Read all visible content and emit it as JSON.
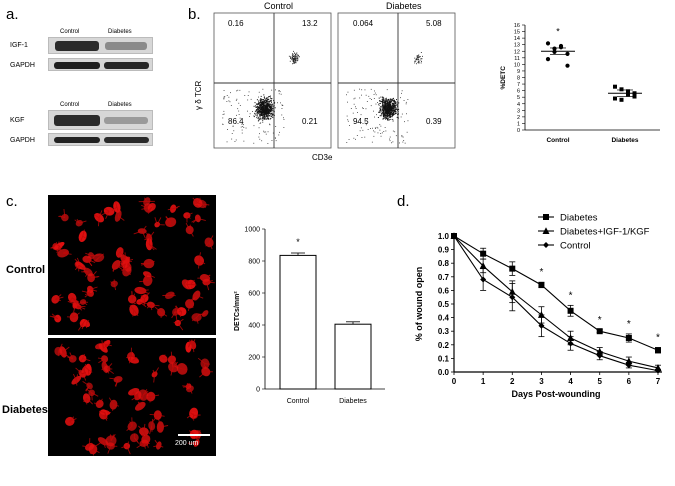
{
  "panels": {
    "a": {
      "letter": "a.",
      "blots": [
        {
          "columns": [
            "Control",
            "Diabetes"
          ],
          "rows": [
            "IGF-1",
            "GAPDH"
          ]
        },
        {
          "columns": [
            "Control",
            "Diabetes"
          ],
          "rows": [
            "KGF",
            "GAPDH"
          ]
        }
      ]
    },
    "b": {
      "letter": "b.",
      "flow": {
        "x_label": "CD3e",
        "y_label": "γ δ TCR",
        "plots": [
          {
            "title": "Control",
            "quadrants": {
              "ul": "0.16",
              "ur": "13.2",
              "ll": "86.4",
              "lr": "0.21"
            }
          },
          {
            "title": "Diabetes",
            "quadrants": {
              "ul": "0.064",
              "ur": "5.08",
              "ll": "94.5",
              "lr": "0.39"
            }
          }
        ]
      },
      "scatter_ylabel": "%DETC",
      "scatter_categories": [
        "Control",
        "Diabetes"
      ],
      "star": "*"
    },
    "c": {
      "letter": "c.",
      "row_labels": [
        "Control",
        "Diabetes"
      ],
      "scale_bar": "200 um",
      "bar_ylabel": "DETCs/mm²",
      "star": "*"
    },
    "d": {
      "letter": "d.",
      "xlabel": "Days Post-wounding",
      "ylabel": "% of wound open",
      "legend": [
        "Diabetes",
        "Diabetes+IGF-1/KGF",
        "Control"
      ],
      "star": "*"
    }
  },
  "chart_data": [
    {
      "type": "scatter",
      "panel": "b",
      "ylabel": "%DETC",
      "categories": [
        "Control",
        "Diabetes"
      ],
      "ylim": [
        0,
        16
      ],
      "yticks": [
        0,
        1,
        2,
        3,
        4,
        5,
        6,
        7,
        8,
        9,
        10,
        11,
        12,
        13,
        14,
        15,
        16
      ],
      "series": [
        {
          "name": "Control",
          "marker": "circle",
          "values": [
            13.2,
            12.4,
            12.8,
            11.6,
            10.8,
            11.9,
            12.6,
            9.8
          ],
          "mean": 12.0
        },
        {
          "name": "Diabetes",
          "marker": "square",
          "values": [
            6.6,
            6.2,
            5.4,
            5.6,
            4.8,
            4.6,
            5.9,
            5.1
          ],
          "mean": 5.6
        }
      ],
      "annotations": [
        {
          "category": "Control",
          "text": "*"
        }
      ]
    },
    {
      "type": "bar",
      "panel": "c",
      "ylabel": "DETCs/mm²",
      "categories": [
        "Control",
        "Diabetes"
      ],
      "values": [
        835,
        405
      ],
      "errors": [
        15,
        15
      ],
      "ylim": [
        0,
        1000
      ],
      "yticks": [
        0,
        200,
        400,
        600,
        800,
        1000
      ],
      "annotations": [
        {
          "category": "Control",
          "text": "*"
        }
      ]
    },
    {
      "type": "line",
      "panel": "d",
      "xlabel": "Days Post-wounding",
      "ylabel": "% of wound open",
      "x": [
        0,
        1,
        2,
        3,
        4,
        5,
        6,
        7
      ],
      "xlim": [
        0,
        7
      ],
      "ylim": [
        0,
        1.0
      ],
      "yticks": [
        0,
        0.1,
        0.2,
        0.3,
        0.4,
        0.5,
        0.6,
        0.7,
        0.8,
        0.9,
        1.0
      ],
      "legend_position": "top-right",
      "series": [
        {
          "name": "Diabetes",
          "marker": "square",
          "values": [
            1.0,
            0.87,
            0.76,
            0.64,
            0.45,
            0.3,
            0.25,
            0.16
          ],
          "errors": [
            0,
            0.04,
            0.05,
            0.02,
            0.04,
            0.01,
            0.03,
            0.02
          ]
        },
        {
          "name": "Diabetes+IGF-1/KGF",
          "marker": "triangle",
          "values": [
            1.0,
            0.78,
            0.59,
            0.42,
            0.25,
            0.15,
            0.08,
            0.03
          ],
          "errors": [
            0,
            0.05,
            0.08,
            0.06,
            0.05,
            0.03,
            0.03,
            0.02
          ]
        },
        {
          "name": "Control",
          "marker": "diamond",
          "values": [
            1.0,
            0.68,
            0.55,
            0.34,
            0.21,
            0.12,
            0.05,
            0.01
          ],
          "errors": [
            0,
            0.08,
            0.1,
            0.08,
            0.05,
            0.03,
            0.02,
            0.01
          ]
        }
      ],
      "significance_x": [
        3,
        4,
        5,
        6,
        7
      ],
      "significance_text": "*"
    }
  ]
}
